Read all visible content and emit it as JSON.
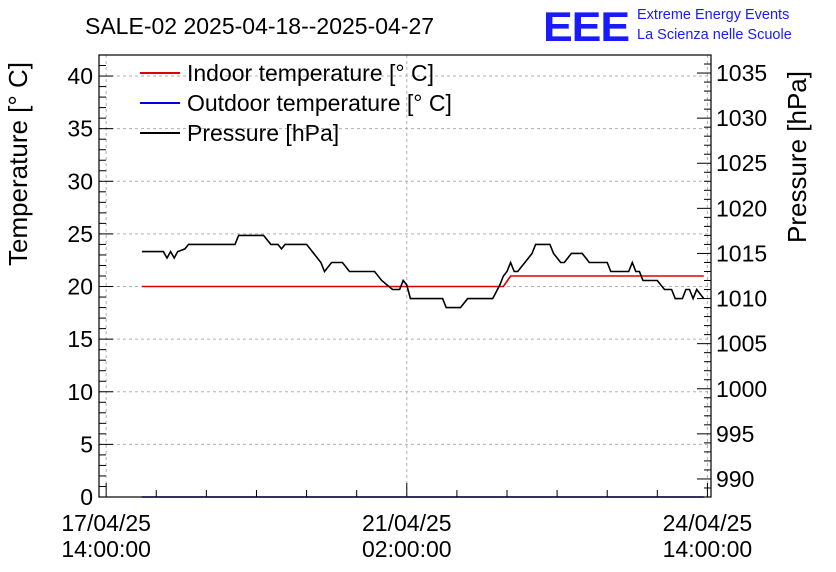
{
  "header": {
    "title": "SALE-02 2025-04-18--2025-04-27",
    "logo_text": "EEE",
    "logo_line1": "Extreme Energy Events",
    "logo_line2": "La Scienza nelle Scuole"
  },
  "colors": {
    "indoor": "#e00000",
    "outdoor": "#0000e0",
    "pressure": "#000000",
    "logo": "#1a1aff"
  },
  "chart_data": {
    "type": "line",
    "title": "SALE-02 2025-04-18--2025-04-27",
    "xlabel": "",
    "ylabel": "Temperature [° C]",
    "y2label": "Pressure [hPa]",
    "ylim": [
      0,
      42
    ],
    "y2lim": [
      988,
      1037
    ],
    "xlim": [
      "2025-04-17 12:00",
      "2025-04-24 15:00"
    ],
    "grid": true,
    "legend_position": "top-left",
    "x_ticks": [
      {
        "x": "2025-04-17 14:00",
        "line1": "17/04/25",
        "line2": "14:00:00"
      },
      {
        "x": "2025-04-21 02:00",
        "line1": "21/04/25",
        "line2": "02:00:00"
      },
      {
        "x": "2025-04-24 14:00",
        "line1": "24/04/25",
        "line2": "14:00:00"
      }
    ],
    "y_ticks": [
      "0",
      "5",
      "10",
      "15",
      "20",
      "25",
      "30",
      "35",
      "40"
    ],
    "y2_ticks": [
      "990",
      "995",
      "1000",
      "1005",
      "1010",
      "1015",
      "1020",
      "1025",
      "1030",
      "1035"
    ],
    "series": [
      {
        "name": "Indoor temperature [° C]",
        "axis": "left",
        "color": "#e00000",
        "points": [
          [
            "2025-04-18 00:00",
            20.0
          ],
          [
            "2025-04-22 05:00",
            20.0
          ],
          [
            "2025-04-22 07:00",
            21.0
          ],
          [
            "2025-04-24 13:00",
            21.0
          ]
        ]
      },
      {
        "name": "Outdoor temperature [° C]",
        "axis": "left",
        "color": "#0000e0",
        "points": [
          [
            "2025-04-18 00:00",
            0.0
          ],
          [
            "2025-04-24 13:00",
            0.0
          ]
        ]
      },
      {
        "name": "Pressure [hPa]",
        "axis": "right",
        "color": "#000000",
        "points": [
          [
            "2025-04-18 00:00",
            1015.2
          ],
          [
            "2025-04-18 06:00",
            1015.2
          ],
          [
            "2025-04-18 07:00",
            1014.5
          ],
          [
            "2025-04-18 08:00",
            1015.2
          ],
          [
            "2025-04-18 09:00",
            1014.5
          ],
          [
            "2025-04-18 10:00",
            1015.2
          ],
          [
            "2025-04-18 12:00",
            1015.5
          ],
          [
            "2025-04-18 13:00",
            1016.0
          ],
          [
            "2025-04-18 20:00",
            1016.0
          ],
          [
            "2025-04-19 02:00",
            1016.0
          ],
          [
            "2025-04-19 03:00",
            1017.0
          ],
          [
            "2025-04-19 10:00",
            1017.0
          ],
          [
            "2025-04-19 12:00",
            1016.0
          ],
          [
            "2025-04-19 14:00",
            1016.0
          ],
          [
            "2025-04-19 15:00",
            1015.5
          ],
          [
            "2025-04-19 16:00",
            1016.0
          ],
          [
            "2025-04-19 22:00",
            1016.0
          ],
          [
            "2025-04-20 00:00",
            1015.0
          ],
          [
            "2025-04-20 02:00",
            1014.0
          ],
          [
            "2025-04-20 03:00",
            1013.0
          ],
          [
            "2025-04-20 05:00",
            1014.0
          ],
          [
            "2025-04-20 08:00",
            1014.0
          ],
          [
            "2025-04-20 10:00",
            1013.0
          ],
          [
            "2025-04-20 17:00",
            1013.0
          ],
          [
            "2025-04-20 19:00",
            1012.0
          ],
          [
            "2025-04-20 22:00",
            1011.0
          ],
          [
            "2025-04-21 00:00",
            1011.0
          ],
          [
            "2025-04-21 01:00",
            1012.0
          ],
          [
            "2025-04-21 02:00",
            1011.5
          ],
          [
            "2025-04-21 03:00",
            1010.0
          ],
          [
            "2025-04-21 12:00",
            1010.0
          ],
          [
            "2025-04-21 13:00",
            1009.0
          ],
          [
            "2025-04-21 17:00",
            1009.0
          ],
          [
            "2025-04-21 19:00",
            1010.0
          ],
          [
            "2025-04-22 02:00",
            1010.0
          ],
          [
            "2025-04-22 04:00",
            1011.5
          ],
          [
            "2025-04-22 05:00",
            1012.5
          ],
          [
            "2025-04-22 06:00",
            1013.0
          ],
          [
            "2025-04-22 07:00",
            1014.0
          ],
          [
            "2025-04-22 08:00",
            1013.0
          ],
          [
            "2025-04-22 09:00",
            1013.0
          ],
          [
            "2025-04-22 11:00",
            1014.0
          ],
          [
            "2025-04-22 13:00",
            1015.0
          ],
          [
            "2025-04-22 14:00",
            1016.0
          ],
          [
            "2025-04-22 18:00",
            1016.0
          ],
          [
            "2025-04-22 19:00",
            1015.0
          ],
          [
            "2025-04-22 21:00",
            1014.0
          ],
          [
            "2025-04-22 22:00",
            1014.0
          ],
          [
            "2025-04-23 00:00",
            1015.0
          ],
          [
            "2025-04-23 03:00",
            1015.0
          ],
          [
            "2025-04-23 05:00",
            1014.0
          ],
          [
            "2025-04-23 10:00",
            1014.0
          ],
          [
            "2025-04-23 11:00",
            1013.0
          ],
          [
            "2025-04-23 16:00",
            1013.0
          ],
          [
            "2025-04-23 17:00",
            1014.0
          ],
          [
            "2025-04-23 18:00",
            1013.0
          ],
          [
            "2025-04-23 19:00",
            1013.0
          ],
          [
            "2025-04-23 20:00",
            1012.0
          ],
          [
            "2025-04-24 00:00",
            1012.0
          ],
          [
            "2025-04-24 02:00",
            1011.0
          ],
          [
            "2025-04-24 04:00",
            1011.0
          ],
          [
            "2025-04-24 05:00",
            1010.0
          ],
          [
            "2025-04-24 07:00",
            1010.0
          ],
          [
            "2025-04-24 08:00",
            1011.0
          ],
          [
            "2025-04-24 09:00",
            1011.0
          ],
          [
            "2025-04-24 10:00",
            1010.0
          ],
          [
            "2025-04-24 11:00",
            1011.0
          ],
          [
            "2025-04-24 13:00",
            1010.0
          ]
        ]
      }
    ]
  }
}
